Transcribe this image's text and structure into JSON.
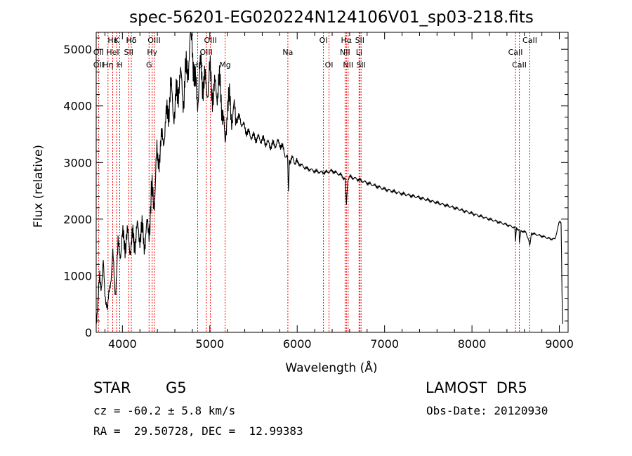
{
  "chart_data": {
    "type": "line",
    "title": "spec-56201-EG020224N124106V01_sp03-218.fits",
    "xlabel": "Wavelength (Å)",
    "ylabel": "Flux (relative)",
    "xlim": [
      3700,
      9100
    ],
    "ylim": [
      0,
      5300
    ],
    "xticks": [
      4000,
      5000,
      6000,
      7000,
      8000,
      9000
    ],
    "yticks": [
      0,
      1000,
      2000,
      3000,
      4000,
      5000
    ],
    "grid": false,
    "legend": "none",
    "line_color": "#000000",
    "marker_color": "#ff0000",
    "spectrum": {
      "x": [
        3700,
        3720,
        3740,
        3760,
        3780,
        3800,
        3830,
        3860,
        3890,
        3920,
        3950,
        3980,
        4000,
        4050,
        4100,
        4150,
        4200,
        4250,
        4300,
        4330,
        4360,
        4400,
        4450,
        4500,
        4550,
        4600,
        4650,
        4700,
        4750,
        4800,
        4830,
        4860,
        4900,
        4950,
        5000,
        5050,
        5100,
        5150,
        5175,
        5200,
        5250,
        5300,
        5350,
        5400,
        5450,
        5500,
        5600,
        5700,
        5800,
        5850,
        5890,
        5900,
        5910,
        5950,
        6000,
        6100,
        6200,
        6300,
        6400,
        6500,
        6550,
        6563,
        6580,
        6600,
        6700,
        6800,
        7000,
        7200,
        7400,
        7600,
        7800,
        8000,
        8200,
        8400,
        8490,
        8498,
        8510,
        8540,
        8542,
        8560,
        8620,
        8662,
        8680,
        8800,
        8900,
        8950,
        9000,
        9020,
        9030,
        9040
      ],
      "y": [
        150,
        500,
        1000,
        850,
        1150,
        700,
        400,
        900,
        1300,
        700,
        1450,
        1500,
        1600,
        1650,
        1550,
        1700,
        1800,
        1650,
        1850,
        2300,
        2450,
        3000,
        3350,
        3700,
        4250,
        3900,
        4500,
        4200,
        4800,
        5200,
        4300,
        4200,
        4650,
        4300,
        4500,
        4200,
        4400,
        3950,
        3200,
        4100,
        3900,
        3800,
        3750,
        3600,
        3500,
        3450,
        3400,
        3300,
        3350,
        3200,
        3050,
        2450,
        3050,
        3050,
        3000,
        2900,
        2850,
        2820,
        2850,
        2780,
        2700,
        2250,
        2700,
        2750,
        2700,
        2640,
        2530,
        2450,
        2380,
        2290,
        2200,
        2100,
        2000,
        1900,
        1850,
        1600,
        1850,
        1800,
        1580,
        1800,
        1760,
        1550,
        1750,
        1700,
        1650,
        1650,
        1950,
        1950,
        700,
        150
      ]
    },
    "line_labels": [
      {
        "text": "Hδ",
        "wl": 4102,
        "row": 1
      },
      {
        "text": "K",
        "wl": 3934,
        "row": 1
      },
      {
        "text": "Hε",
        "wl": 3889,
        "row": 1
      },
      {
        "text": "Hδ",
        "wl": 4102,
        "row": 1
      },
      {
        "text": "OIII",
        "wl": 4363,
        "row": 1
      },
      {
        "text": "OIII",
        "wl": 5007,
        "row": 1
      },
      {
        "text": "OI",
        "wl": 6300,
        "row": 1
      },
      {
        "text": "Hα",
        "wl": 6563,
        "row": 1
      },
      {
        "text": "SII",
        "wl": 6716,
        "row": 1
      },
      {
        "text": "CaII",
        "wl": 8662,
        "row": 1
      },
      {
        "text": "OII",
        "wl": 3727,
        "row": 2
      },
      {
        "text": "HeI",
        "wl": 3889,
        "row": 2
      },
      {
        "text": "SII",
        "wl": 4072,
        "row": 2
      },
      {
        "text": "Hγ",
        "wl": 4340,
        "row": 2
      },
      {
        "text": "OIII",
        "wl": 4959,
        "row": 2
      },
      {
        "text": "Na",
        "wl": 5893,
        "row": 2
      },
      {
        "text": "NII",
        "wl": 6548,
        "row": 2
      },
      {
        "text": "Li",
        "wl": 6708,
        "row": 2
      },
      {
        "text": "CaII",
        "wl": 8498,
        "row": 2
      },
      {
        "text": "OII",
        "wl": 3727,
        "row": 3
      },
      {
        "text": "Hη",
        "wl": 3835,
        "row": 3
      },
      {
        "text": "H",
        "wl": 3969,
        "row": 3
      },
      {
        "text": "G",
        "wl": 4305,
        "row": 3
      },
      {
        "text": "Hβ",
        "wl": 4861,
        "row": 3
      },
      {
        "text": "Mg",
        "wl": 5175,
        "row": 3
      },
      {
        "text": "OI",
        "wl": 6364,
        "row": 3
      },
      {
        "text": "NII",
        "wl": 6583,
        "row": 3
      },
      {
        "text": "SII",
        "wl": 6731,
        "row": 3
      },
      {
        "text": "CaII",
        "wl": 8542,
        "row": 3
      }
    ],
    "line_markers": [
      3727,
      3835,
      3889,
      3934,
      3969,
      4072,
      4102,
      4305,
      4340,
      4363,
      4861,
      4959,
      5007,
      5175,
      5893,
      6300,
      6364,
      6548,
      6563,
      6583,
      6708,
      6716,
      6731,
      8498,
      8542,
      8662
    ]
  },
  "info": {
    "object_class": "STAR",
    "subclass": "G5",
    "survey": "LAMOST  DR5",
    "cz": "cz = -60.2 ± 5.8 km/s",
    "obs_date": "Obs-Date: 20120930",
    "coords": "RA =  29.50728, DEC =  12.99383"
  }
}
